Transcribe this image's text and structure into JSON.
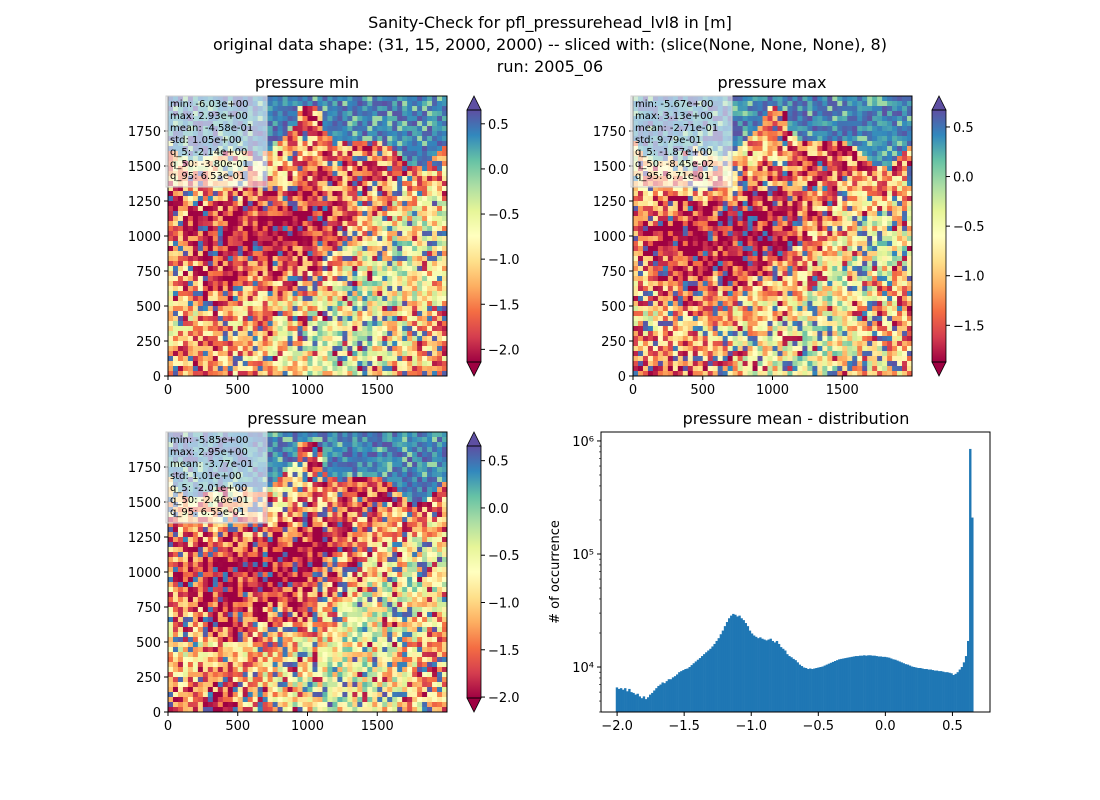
{
  "figure": {
    "title_lines": [
      "Sanity-Check for pfl_pressurehead_lvl8 in [m]",
      "original data shape: (31, 15, 2000, 2000) -- sliced with: (slice(None, None, None), 8)",
      "run: 2005_06"
    ]
  },
  "colors": {
    "colormap": "Spectral",
    "ocean": "#5e4fa2",
    "histogram_bar": "#1f77b4"
  },
  "chart_data": [
    {
      "type": "heatmap",
      "title": "pressure min",
      "x_ticks": [
        "0",
        "500",
        "1000",
        "1500"
      ],
      "y_ticks": [
        "0",
        "250",
        "500",
        "750",
        "1000",
        "1250",
        "1500",
        "1750"
      ],
      "xlim": [
        0,
        2000
      ],
      "ylim": [
        0,
        2000
      ],
      "stats": [
        "min: -6.03e+00",
        "max: 2.93e+00",
        "mean: -4.58e-01",
        "std: 1.05e+00",
        "q_5: -2.14e+00",
        "q_50: -3.80e-01",
        "q_95: 6.53e-01"
      ],
      "colorbar": {
        "range": [
          -2.14,
          0.653
        ],
        "ticks": [
          "0.5",
          "0.0",
          "−0.5",
          "−1.0",
          "−1.5",
          "−2.0"
        ],
        "tick_values": [
          0.5,
          0.0,
          -0.5,
          -1.0,
          -1.5,
          -2.0
        ],
        "extend": "both"
      }
    },
    {
      "type": "heatmap",
      "title": "pressure max",
      "x_ticks": [
        "0",
        "500",
        "1000",
        "1500"
      ],
      "y_ticks": [
        "0",
        "250",
        "500",
        "750",
        "1000",
        "1250",
        "1500",
        "1750"
      ],
      "xlim": [
        0,
        2000
      ],
      "ylim": [
        0,
        2000
      ],
      "stats": [
        "min: -5.67e+00",
        "max: 3.13e+00",
        "mean: -2.71e-01",
        "std: 9.79e-01",
        "q_5: -1.87e+00",
        "q_50: -8.45e-02",
        "q_95: 6.71e-01"
      ],
      "colorbar": {
        "range": [
          -1.87,
          0.671
        ],
        "ticks": [
          "0.5",
          "0.0",
          "−0.5",
          "−1.0",
          "−1.5"
        ],
        "tick_values": [
          0.5,
          0.0,
          -0.5,
          -1.0,
          -1.5
        ],
        "extend": "both"
      }
    },
    {
      "type": "heatmap",
      "title": "pressure mean",
      "x_ticks": [
        "0",
        "500",
        "1000",
        "1500"
      ],
      "y_ticks": [
        "0",
        "250",
        "500",
        "750",
        "1000",
        "1250",
        "1500",
        "1750"
      ],
      "xlim": [
        0,
        2000
      ],
      "ylim": [
        0,
        2000
      ],
      "stats": [
        "min: -5.85e+00",
        "max: 2.95e+00",
        "mean: -3.77e-01",
        "std: 1.01e+00",
        "q_5: -2.01e+00",
        "q_50: -2.46e-01",
        "q_95: 6.55e-01"
      ],
      "colorbar": {
        "range": [
          -2.01,
          0.655
        ],
        "ticks": [
          "0.5",
          "0.0",
          "−0.5",
          "−1.0",
          "−1.5",
          "−2.0"
        ],
        "tick_values": [
          0.5,
          0.0,
          -0.5,
          -1.0,
          -1.5,
          -2.0
        ],
        "extend": "both"
      }
    },
    {
      "type": "bar",
      "title": "pressure mean - distribution",
      "ylabel": "# of occurrence",
      "xlabel": "",
      "y_scale": "log",
      "xlim": [
        -2.12,
        0.78
      ],
      "ylim": [
        4000,
        1200000
      ],
      "x_ticks": [
        "−2.0",
        "−1.5",
        "−1.0",
        "−0.5",
        "0.0",
        "0.5"
      ],
      "x_tick_values": [
        -2.0,
        -1.5,
        -1.0,
        -0.5,
        0.0,
        0.5
      ],
      "y_ticks": [
        "10⁴",
        "10⁵",
        "10⁶"
      ],
      "y_tick_values": [
        10000,
        100000,
        1000000
      ],
      "bin_range": [
        -2.01,
        0.655
      ],
      "values": [
        6600,
        6400,
        6500,
        6300,
        6500,
        6100,
        6400,
        6000,
        5900,
        5700,
        5800,
        5500,
        5300,
        5500,
        5200,
        5400,
        5700,
        5900,
        6200,
        6500,
        6800,
        7000,
        7300,
        7200,
        7500,
        7800,
        7800,
        8100,
        8300,
        8600,
        9000,
        9200,
        9400,
        9600,
        9700,
        10000,
        10400,
        10800,
        11200,
        11600,
        12000,
        12500,
        13000,
        13500,
        14000,
        14500,
        15200,
        16000,
        17000,
        18000,
        19500,
        21000,
        23000,
        25000,
        27000,
        28500,
        29500,
        29000,
        28000,
        28500,
        27000,
        26000,
        24500,
        23000,
        21000,
        19800,
        19000,
        18500,
        18000,
        18300,
        17800,
        17500,
        17200,
        17500,
        17800,
        17000,
        16500,
        17000,
        16000,
        15000,
        14500,
        14000,
        13000,
        12500,
        12200,
        11800,
        11500,
        11000,
        10500,
        10200,
        9900,
        9800,
        9600,
        9700,
        9600,
        9700,
        9800,
        9900,
        10000,
        10100,
        10300,
        10500,
        10700,
        10900,
        11100,
        11300,
        11500,
        11700,
        11800,
        11900,
        12000,
        12100,
        12200,
        12300,
        12400,
        12500,
        12500,
        12600,
        12600,
        12700,
        12600,
        12700,
        12700,
        12600,
        12600,
        12500,
        12400,
        12400,
        12300,
        12300,
        12200,
        12100,
        11900,
        11700,
        11600,
        11400,
        11200,
        11000,
        10800,
        10600,
        10500,
        10300,
        10100,
        10000,
        9900,
        9800,
        9800,
        9700,
        9600,
        9600,
        9500,
        9500,
        9400,
        9300,
        9300,
        9200,
        9200,
        9100,
        9000,
        9000,
        8900,
        8800,
        8500,
        8700,
        9000,
        9500,
        10000,
        11000,
        12500,
        17000,
        850000,
        210000
      ]
    }
  ]
}
